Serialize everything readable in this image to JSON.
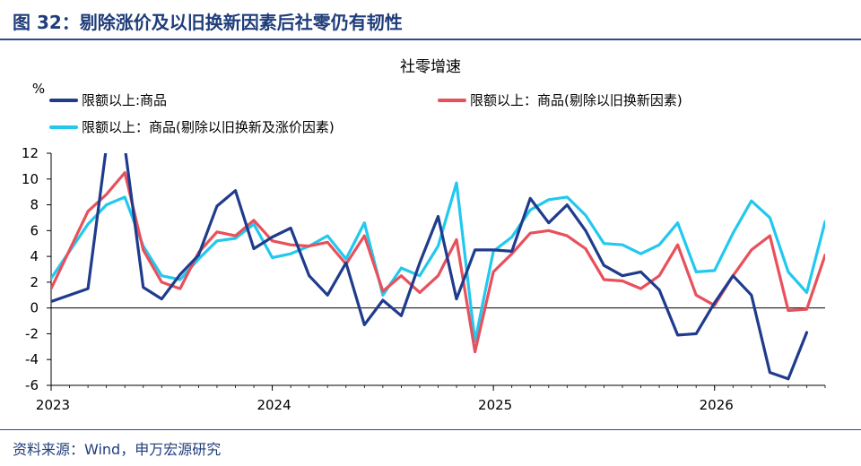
{
  "figure": {
    "title": "图 32：剔除涨价及以旧换新因素后社零仍有韧性",
    "source": "资料来源：Wind，申万宏源研究"
  },
  "chart_data": {
    "type": "line",
    "title": "社零增速",
    "ylabel": "%",
    "xlabel": "",
    "ylim": [
      -6,
      12
    ],
    "yticks": [
      -6,
      -4,
      -2,
      0,
      2,
      4,
      6,
      8,
      10,
      12
    ],
    "xlim": [
      "2023-01",
      "2026-07"
    ],
    "xticks": [
      "2023",
      "2024",
      "2025",
      "2026"
    ],
    "grid": false,
    "legend_position": "top",
    "x": [
      "2023-01",
      "2023-03",
      "2023-04",
      "2023-05",
      "2023-06",
      "2023-07",
      "2023-08",
      "2023-09",
      "2023-10",
      "2023-11",
      "2023-12",
      "2024-01",
      "2024-02",
      "2024-03",
      "2024-04",
      "2024-05",
      "2024-06",
      "2024-07",
      "2024-08",
      "2024-09",
      "2024-10",
      "2024-11",
      "2024-12",
      "2025-01",
      "2025-02",
      "2025-03",
      "2025-04",
      "2025-05",
      "2025-06",
      "2025-07",
      "2025-08",
      "2025-09",
      "2025-10",
      "2025-11",
      "2025-12",
      "2026-01",
      "2026-02",
      "2026-03",
      "2026-04",
      "2026-05",
      "2026-06",
      "2026-07"
    ],
    "series": [
      {
        "name": "限额以上:商品",
        "color": "#1f3b8c",
        "values": [
          0.5,
          1.5,
          12.5,
          12.5,
          1.6,
          0.7,
          2.6,
          4.1,
          7.9,
          9.1,
          4.6,
          5.5,
          6.2,
          2.5,
          1.0,
          3.5,
          -1.3,
          0.6,
          -0.6,
          3.5,
          7.1,
          0.7,
          4.5,
          4.5,
          4.4,
          8.5,
          6.6,
          8.0,
          6.0,
          3.3,
          2.5,
          2.8,
          1.4,
          -2.1,
          -2.0,
          0.4,
          2.5,
          1.0,
          -5.0,
          -5.5,
          -1.9,
          null
        ]
      },
      {
        "name": "限额以上：商品(剔除以旧换新因素)",
        "color": "#e8505b",
        "values": [
          1.5,
          7.5,
          8.8,
          10.5,
          4.5,
          2.0,
          1.5,
          4.3,
          5.9,
          5.6,
          6.8,
          5.2,
          4.9,
          4.8,
          5.1,
          3.4,
          5.6,
          1.3,
          2.5,
          1.2,
          2.5,
          5.3,
          -3.4,
          2.8,
          4.2,
          5.8,
          6.0,
          5.6,
          4.6,
          2.2,
          2.1,
          1.5,
          2.5,
          4.9,
          1.0,
          0.2,
          2.5,
          4.5,
          5.6,
          -0.2,
          -0.1,
          4.1
        ]
      },
      {
        "name": "限额以上：商品(剔除以旧换新及涨价因素)",
        "color": "#22c8ee",
        "values": [
          2.3,
          6.5,
          8.0,
          8.6,
          4.8,
          2.5,
          2.2,
          3.8,
          5.2,
          5.4,
          6.5,
          3.9,
          4.2,
          4.8,
          5.6,
          3.8,
          6.6,
          1.0,
          3.1,
          2.5,
          4.8,
          9.7,
          -2.6,
          4.4,
          5.5,
          7.6,
          8.4,
          8.6,
          7.2,
          5.0,
          4.9,
          4.2,
          4.9,
          6.6,
          2.8,
          2.9,
          5.8,
          8.3,
          7.0,
          2.8,
          1.2,
          6.7
        ]
      }
    ]
  }
}
